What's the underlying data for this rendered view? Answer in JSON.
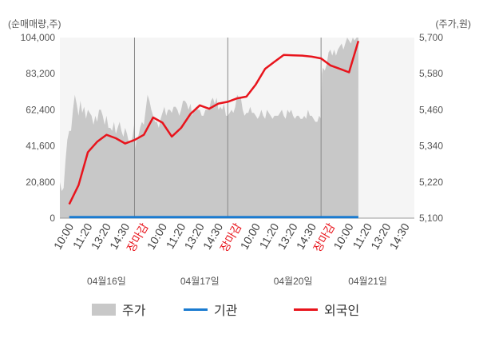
{
  "chart_data": {
    "type": "line",
    "left_axis": {
      "unit": "(순매매량,주)",
      "ticks": [
        "0",
        "20,800",
        "41,600",
        "62,400",
        "83,200",
        "104,000"
      ],
      "tick_values": [
        0,
        20800,
        41600,
        62400,
        83200,
        104000
      ],
      "range": [
        0,
        104000
      ]
    },
    "right_axis": {
      "unit": "(주가,원)",
      "ticks": [
        "5,100",
        "5,220",
        "5,340",
        "5,460",
        "5,580",
        "5,700"
      ],
      "tick_values": [
        5100,
        5220,
        5340,
        5460,
        5580,
        5700
      ],
      "range": [
        5100,
        5700
      ]
    },
    "x_slots": [
      "10:00",
      "11:20",
      "13:20",
      "14:30",
      "장마감",
      "10:00",
      "11:20",
      "13:20",
      "14:30",
      "장마감",
      "10:00",
      "11:20",
      "13:20",
      "14:30",
      "장마감",
      "10:00",
      "11:20",
      "13:20",
      "14:30"
    ],
    "close_label": "장마감",
    "dates": [
      {
        "label": "04월16일",
        "slot": 2
      },
      {
        "label": "04월17일",
        "slot": 7
      },
      {
        "label": "04월20일",
        "slot": 12
      },
      {
        "label": "04월21일",
        "slot": 16
      }
    ],
    "session_dividers": [
      4,
      9,
      14
    ],
    "series": [
      {
        "name": "주가",
        "kind": "area",
        "color": "#c8c8c8",
        "x": [
          0,
          0.1,
          0.2,
          0.3,
          0.4,
          0.5,
          0.6,
          0.7,
          0.8,
          0.9,
          1.0,
          1.1,
          1.2,
          1.3,
          1.4,
          1.5,
          1.6,
          1.7,
          1.8,
          1.9,
          2.0,
          2.1,
          2.2,
          2.3,
          2.4,
          2.5,
          2.6,
          2.7,
          2.8,
          2.9,
          3.0,
          3.1,
          3.2,
          3.3,
          3.4,
          3.5,
          3.6,
          3.7,
          3.8,
          3.9,
          4.0,
          4.05,
          4.1,
          4.2,
          4.3,
          4.4,
          4.5,
          4.6,
          4.7,
          4.8,
          4.9,
          5.0,
          5.1,
          5.2,
          5.3,
          5.4,
          5.5,
          5.6,
          5.7,
          5.8,
          5.9,
          6.0,
          6.1,
          6.2,
          6.3,
          6.4,
          6.5,
          6.6,
          6.7,
          6.8,
          6.9,
          7.0,
          7.1,
          7.2,
          7.3,
          7.4,
          7.5,
          7.6,
          7.7,
          7.8,
          7.9,
          8.0,
          8.1,
          8.2,
          8.3,
          8.4,
          8.5,
          8.6,
          8.7,
          8.8,
          8.9,
          9.0,
          9.1,
          9.2,
          9.3,
          9.4,
          9.5,
          9.6,
          9.7,
          9.8,
          9.9,
          10.0,
          10.1,
          10.2,
          10.3,
          10.4,
          10.5,
          10.6,
          10.7,
          10.8,
          10.9,
          11.0,
          11.1,
          11.2,
          11.3,
          11.4,
          11.5,
          11.6,
          11.7,
          11.8,
          11.9,
          12.0,
          12.1,
          12.2,
          12.3,
          12.4,
          12.5,
          12.6,
          12.7,
          12.8,
          12.9,
          13.0,
          13.1,
          13.2,
          13.3,
          13.4,
          13.5,
          13.6,
          13.7,
          13.8,
          13.9,
          14.0,
          14.05,
          14.1,
          14.2,
          14.3,
          14.4,
          14.5,
          14.6,
          14.7,
          14.8,
          14.9,
          15.0,
          15.1,
          15.2,
          15.3,
          15.4,
          15.5,
          15.6,
          15.7,
          15.8,
          15.9,
          16.0
        ],
        "values": [
          5220,
          5190,
          5200,
          5290,
          5360,
          5390,
          5390,
          5460,
          5510,
          5480,
          5440,
          5490,
          5450,
          5470,
          5430,
          5460,
          5450,
          5440,
          5410,
          5440,
          5420,
          5460,
          5460,
          5440,
          5410,
          5440,
          5400,
          5400,
          5390,
          5420,
          5380,
          5400,
          5420,
          5390,
          5370,
          5400,
          5380,
          5350,
          5350,
          5370,
          5420,
          5330,
          5360,
          5370,
          5400,
          5420,
          5410,
          5460,
          5510,
          5490,
          5460,
          5440,
          5420,
          5420,
          5400,
          5430,
          5450,
          5470,
          5440,
          5460,
          5460,
          5450,
          5470,
          5470,
          5460,
          5440,
          5460,
          5490,
          5490,
          5480,
          5460,
          5480,
          5440,
          5460,
          5470,
          5460,
          5460,
          5440,
          5440,
          5460,
          5460,
          5460,
          5490,
          5500,
          5480,
          5500,
          5460,
          5470,
          5460,
          5480,
          5440,
          5440,
          5450,
          5460,
          5450,
          5470,
          5510,
          5500,
          5500,
          5460,
          5440,
          5450,
          5450,
          5470,
          5450,
          5450,
          5440,
          5430,
          5440,
          5460,
          5440,
          5430,
          5460,
          5450,
          5440,
          5430,
          5440,
          5440,
          5440,
          5450,
          5460,
          5440,
          5430,
          5460,
          5450,
          5460,
          5440,
          5430,
          5440,
          5440,
          5430,
          5430,
          5440,
          5430,
          5460,
          5440,
          5440,
          5430,
          5420,
          5420,
          5440,
          5430,
          5580,
          5600,
          5590,
          5610,
          5650,
          5660,
          5640,
          5660,
          5640,
          5660,
          5670,
          5680,
          5660,
          5680,
          5700,
          5690,
          5680,
          5700,
          5690,
          5700,
          5700
        ]
      },
      {
        "name": "기관",
        "kind": "line",
        "color": "#1a7bd0",
        "x": [
          0.5,
          16.0
        ],
        "values": [
          600,
          600
        ]
      },
      {
        "name": "외국인",
        "kind": "line",
        "color": "#e8141c",
        "x": [
          0.5,
          1.0,
          1.5,
          2.0,
          2.5,
          3.0,
          3.5,
          4.0,
          4.5,
          5.0,
          5.5,
          6.0,
          6.5,
          7.0,
          7.5,
          8.0,
          8.5,
          9.0,
          9.5,
          10.0,
          10.5,
          11.0,
          11.5,
          12.0,
          12.5,
          13.0,
          13.5,
          14.0,
          14.5,
          15.0,
          15.5,
          16.0
        ],
        "values": [
          8000,
          19000,
          38000,
          44000,
          48000,
          46000,
          43000,
          45000,
          48000,
          58000,
          55000,
          47000,
          52000,
          60000,
          65000,
          63000,
          66000,
          67000,
          69000,
          70000,
          77000,
          86000,
          90000,
          94000,
          93800,
          93600,
          93000,
          92000,
          88000,
          86000,
          84000,
          102000
        ]
      }
    ]
  },
  "legend": {
    "price_label": "주가",
    "institution_label": "기관",
    "foreigner_label": "외국인"
  }
}
